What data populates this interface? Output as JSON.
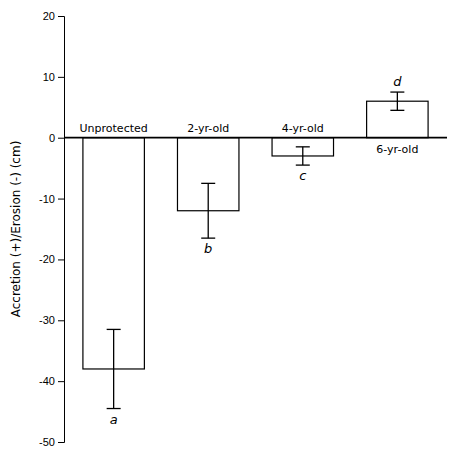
{
  "chart_data": {
    "type": "bar",
    "categories": [
      "Unprotected",
      "2-yr-old",
      "4-yr-old",
      "6-yr-old"
    ],
    "values": [
      -38.0,
      -12.0,
      -3.0,
      6.0
    ],
    "errors": [
      6.5,
      4.5,
      1.5,
      1.5
    ],
    "annotations": [
      "a",
      "b",
      "c",
      "d"
    ],
    "ylabel": "Accretion (+)/Erosion (-) (cm)",
    "ylim": [
      -50,
      20
    ],
    "yticks": [
      -50,
      -40,
      -30,
      -20,
      -10,
      0,
      10,
      20
    ],
    "color": "#ffffff"
  }
}
